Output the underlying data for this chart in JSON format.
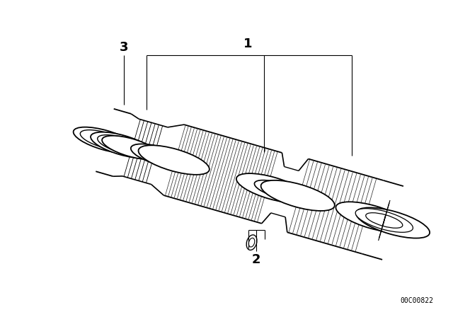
{
  "background_color": "#ffffff",
  "line_color": "#000000",
  "label_1": "1",
  "label_2": "2",
  "label_3": "3",
  "part_number": "00C00822",
  "fig_width": 6.4,
  "fig_height": 4.48,
  "dpi": 100
}
